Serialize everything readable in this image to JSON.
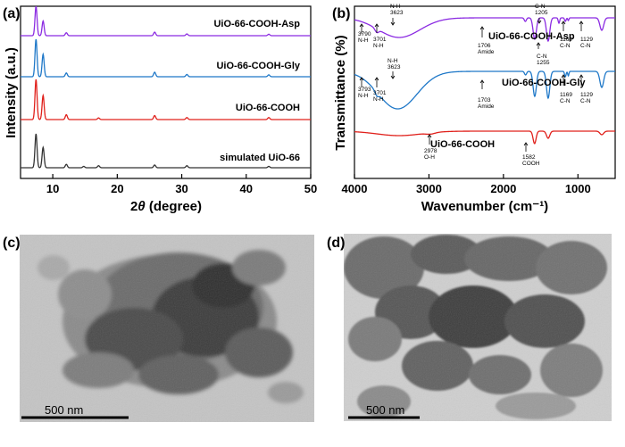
{
  "panels": {
    "a": "(a)",
    "b": "(b)",
    "c": "(c)",
    "d": "(d)"
  },
  "chart_data": [
    {
      "type": "line",
      "panel": "(a)",
      "xlabel_prefix": "2",
      "xlabel_symbol": "θ",
      "xlabel_suffix": " (degree)",
      "ylabel": "Intensity (a.u.)",
      "xlim": [
        5,
        50
      ],
      "xticks": [
        10,
        20,
        30,
        40,
        50
      ],
      "grid": false,
      "series": [
        {
          "name": "UiO-66-COOH-Asp",
          "color": "#8b2be2",
          "peaks": [
            [
              7.4,
              1.0
            ],
            [
              8.5,
              0.5
            ],
            [
              12.1,
              0.1
            ],
            [
              25.8,
              0.12
            ],
            [
              30.8,
              0.06
            ],
            [
              43.5,
              0.05
            ]
          ]
        },
        {
          "name": "UiO-66-COOH-Gly",
          "color": "#1f78c8",
          "peaks": [
            [
              7.4,
              1.0
            ],
            [
              8.5,
              0.6
            ],
            [
              12.1,
              0.1
            ],
            [
              25.8,
              0.12
            ],
            [
              30.8,
              0.06
            ],
            [
              43.5,
              0.05
            ]
          ]
        },
        {
          "name": "UiO-66-COOH",
          "color": "#e0201b",
          "peaks": [
            [
              7.4,
              1.0
            ],
            [
              8.5,
              0.6
            ],
            [
              12.1,
              0.12
            ],
            [
              17.1,
              0.04
            ],
            [
              25.8,
              0.1
            ],
            [
              30.8,
              0.05
            ],
            [
              43.5,
              0.05
            ]
          ]
        },
        {
          "name": "simulated UiO-66",
          "color": "#333333",
          "peaks": [
            [
              7.4,
              1.0
            ],
            [
              8.5,
              0.6
            ],
            [
              12.1,
              0.1
            ],
            [
              14.8,
              0.04
            ],
            [
              17.1,
              0.06
            ],
            [
              25.8,
              0.08
            ],
            [
              30.8,
              0.06
            ],
            [
              43.5,
              0.04
            ]
          ]
        }
      ]
    },
    {
      "type": "line",
      "panel": "(b)",
      "xlabel": "Wavenumber (cm⁻¹)",
      "ylabel": "Transmittance (%)",
      "xlim": [
        4000,
        500
      ],
      "xticks": [
        4000,
        3000,
        2000,
        1000
      ],
      "grid": false,
      "series": [
        {
          "name": "UiO-66-COOH-Asp",
          "color": "#8b2be2"
        },
        {
          "name": "UiO-66-COOH-Gly",
          "color": "#1f78c8"
        },
        {
          "name": "UiO-66-COOH",
          "color": "#e0201b"
        }
      ],
      "annotations": {
        "asp": [
          {
            "text": [
              "N-H",
              "3623"
            ]
          },
          {
            "text": [
              "3790",
              "N-H"
            ]
          },
          {
            "text": [
              "3701",
              "N-H"
            ]
          },
          {
            "text": [
              "1706",
              "Amide"
            ]
          },
          {
            "text": [
              "C-N",
              "1205"
            ]
          },
          {
            "text": [
              "C-N",
              "1255"
            ]
          },
          {
            "text": [
              "1169",
              "C-N"
            ]
          },
          {
            "text": [
              "1129",
              "C-N"
            ]
          }
        ],
        "gly": [
          {
            "text": [
              "N-H",
              "3623"
            ]
          },
          {
            "text": [
              "3793",
              "N-H"
            ]
          },
          {
            "text": [
              "3701",
              "N-H"
            ]
          },
          {
            "text": [
              "1703",
              "Amide"
            ]
          },
          {
            "text": [
              "1169",
              "C-N"
            ]
          },
          {
            "text": [
              "1129",
              "C-N"
            ]
          }
        ],
        "cooh": [
          {
            "text": [
              "2978",
              "O-H"
            ]
          },
          {
            "text": [
              "1582",
              "COOH"
            ]
          }
        ]
      }
    }
  ],
  "tem": {
    "c_scalebar": "500 nm",
    "d_scalebar": "500 nm"
  },
  "colors": {
    "asp": "#8b2be2",
    "gly": "#1f78c8",
    "cooh": "#e0201b",
    "sim": "#333333"
  }
}
